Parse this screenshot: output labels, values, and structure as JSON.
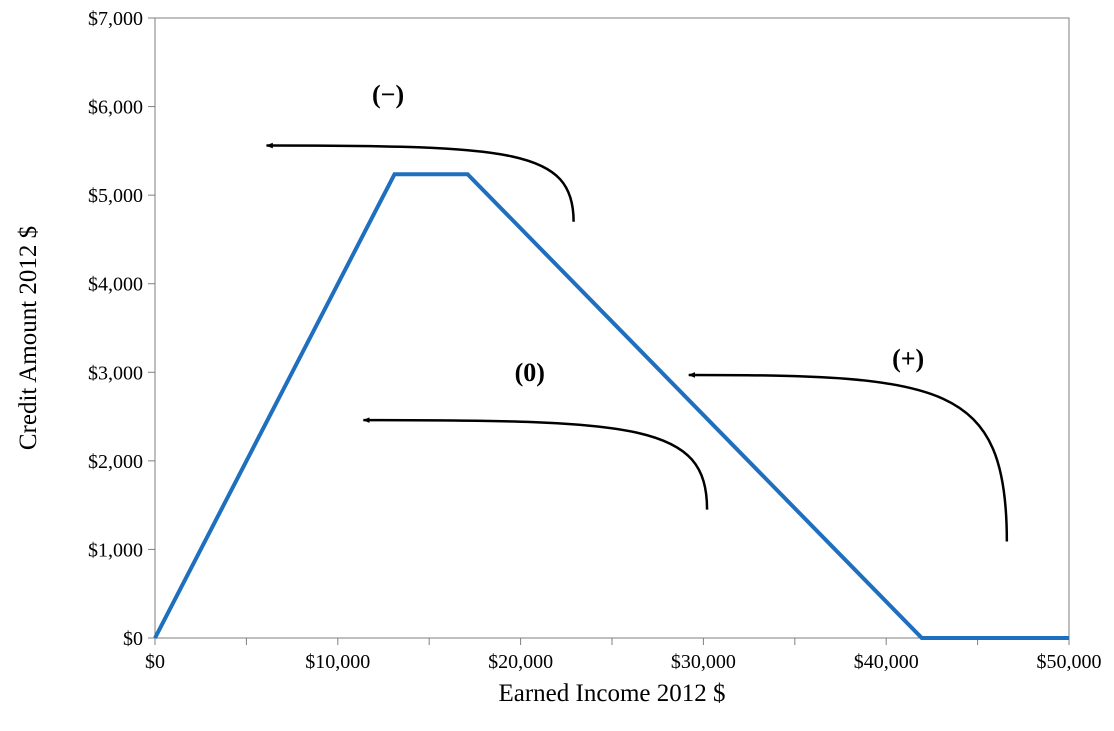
{
  "chart_data": {
    "type": "line",
    "title": "",
    "xlabel": "Earned Income 2012 $",
    "ylabel": "Credit Amount 2012 $",
    "xlim": [
      0,
      50000
    ],
    "ylim": [
      0,
      7000
    ],
    "x_ticks": [
      {
        "value": 0,
        "label": "$0"
      },
      {
        "value": 10000,
        "label": "$10,000"
      },
      {
        "value": 20000,
        "label": "$20,000"
      },
      {
        "value": 30000,
        "label": "$30,000"
      },
      {
        "value": 40000,
        "label": "$40,000"
      },
      {
        "value": 50000,
        "label": "$50,000"
      }
    ],
    "x_minor_ticks": [
      5000,
      15000,
      25000,
      35000,
      45000
    ],
    "y_ticks": [
      {
        "value": 0,
        "label": "$0"
      },
      {
        "value": 1000,
        "label": "$1,000"
      },
      {
        "value": 2000,
        "label": "$2,000"
      },
      {
        "value": 3000,
        "label": "$3,000"
      },
      {
        "value": 4000,
        "label": "$4,000"
      },
      {
        "value": 5000,
        "label": "$5,000"
      },
      {
        "value": 6000,
        "label": "$6,000"
      },
      {
        "value": 7000,
        "label": "$7,000"
      }
    ],
    "grid": false,
    "legend": "none",
    "series": [
      {
        "color": "#1f6fbf",
        "points": [
          {
            "x": 0,
            "y": 0
          },
          {
            "x": 13100,
            "y": 5236
          },
          {
            "x": 17100,
            "y": 5236
          },
          {
            "x": 41950,
            "y": 0
          },
          {
            "x": 50000,
            "y": 0
          }
        ]
      }
    ],
    "annotations": [
      {
        "label": "(−)",
        "label_at": {
          "x": 12750,
          "y": 6040
        },
        "arrow": {
          "from": {
            "x": 22900,
            "y": 4700
          },
          "to": {
            "x": 6100,
            "y": 5560
          }
        }
      },
      {
        "label": "(0)",
        "label_at": {
          "x": 20500,
          "y": 2900
        },
        "arrow": {
          "from": {
            "x": 30200,
            "y": 1450
          },
          "to": {
            "x": 11400,
            "y": 2460
          }
        }
      },
      {
        "label": "(+)",
        "label_at": {
          "x": 41200,
          "y": 3060
        },
        "arrow": {
          "from": {
            "x": 46600,
            "y": 1090
          },
          "to": {
            "x": 29200,
            "y": 2970
          }
        }
      }
    ]
  }
}
